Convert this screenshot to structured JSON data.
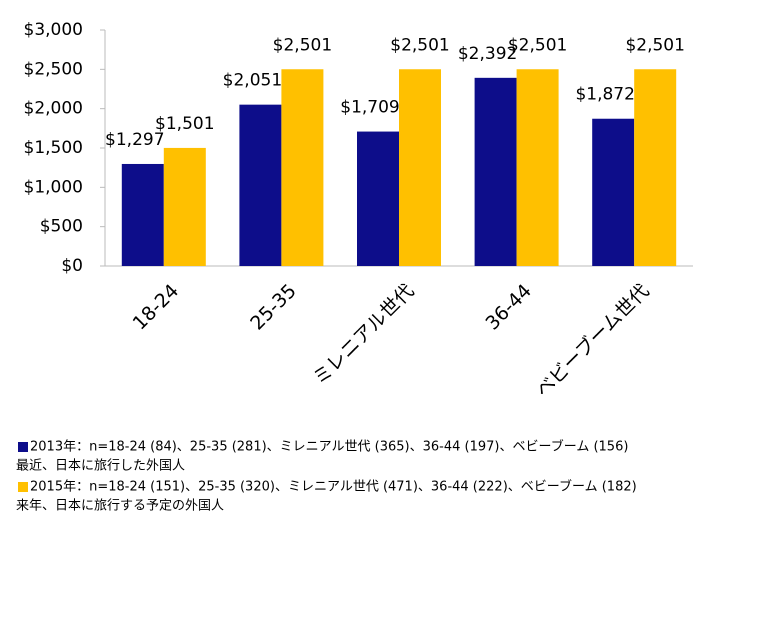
{
  "chart_data": {
    "type": "bar",
    "categories": [
      "18-24",
      "25-35",
      "ミレニアル世代",
      "36-44",
      "ベビーブーム世代"
    ],
    "series": [
      {
        "name": "2013年：n=18-24 (84)、25-35 (281)、ミレニアル世代 (365)、36-44 (197)、ベビーブーム (156)",
        "note": "最近、日本に旅行した外国人",
        "color": "#0d0d8a",
        "values": [
          1297,
          2051,
          1709,
          2392,
          1872
        ],
        "value_labels": [
          "$1,297",
          "$2,051",
          "$1,709",
          "$2,392",
          "$1,872"
        ]
      },
      {
        "name": "2015年：n=18-24 (151)、25-35 (320)、ミレニアル世代 (471)、36-44 (222)、ベビーブーム (182)",
        "note": "来年、日本に旅行する予定の外国人",
        "color": "#ffc000",
        "values": [
          1501,
          2501,
          2501,
          2501,
          2501
        ],
        "value_labels": [
          "$1,501",
          "$2,501",
          "$2,501",
          "$2,501",
          "$2,501"
        ]
      }
    ],
    "ylim": [
      0,
      3000
    ],
    "yticks": [
      {
        "value": 0,
        "label": "$0"
      },
      {
        "value": 500,
        "label": "$500"
      },
      {
        "value": 1000,
        "label": "$1,000"
      },
      {
        "value": 1500,
        "label": "$1,500"
      },
      {
        "value": 2000,
        "label": "$2,000"
      },
      {
        "value": 2500,
        "label": "$2,500"
      },
      {
        "value": 3000,
        "label": "$3,000"
      }
    ],
    "grid": false
  }
}
